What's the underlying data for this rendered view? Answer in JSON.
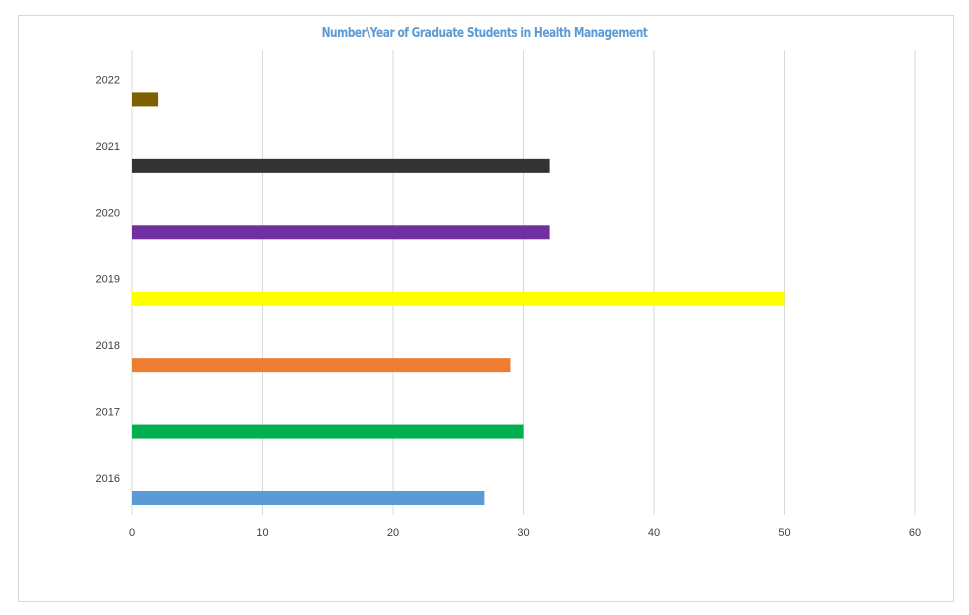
{
  "chart_data": {
    "type": "bar",
    "orientation": "horizontal",
    "title": "Number\\Year of Graduate Students in Health Management",
    "categories": [
      "2016",
      "2017",
      "2018",
      "2019",
      "2020",
      "2021",
      "2022"
    ],
    "values": [
      27,
      30,
      29,
      50,
      32,
      32,
      2
    ],
    "colors": [
      "#5b9bd5",
      "#00b050",
      "#ed7d31",
      "#ffff00",
      "#7030a0",
      "#333333",
      "#7f6000"
    ],
    "xlim": [
      0,
      60
    ],
    "xticks": [
      "0",
      "10",
      "20",
      "30",
      "40",
      "50",
      "60"
    ],
    "grid": true,
    "legend": "none"
  }
}
